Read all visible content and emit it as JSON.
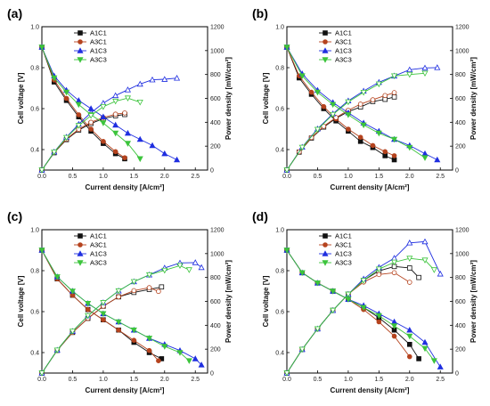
{
  "colors": {
    "A1C1": "#111111",
    "A3C1": "#b5431e",
    "A1C3": "#1f2ee0",
    "A3C3": "#3cc43c"
  },
  "markers": {
    "A1C1": "square",
    "A3C1": "circle",
    "A1C3": "triangle-up",
    "A3C3": "triangle-down"
  },
  "chart_data": [
    {
      "panel_label": "(a)",
      "type": "line",
      "xlabel": "Current density [A/cm²]",
      "ylabel": "Cell voltage [V]",
      "y2label": "Power density [mW/cm²]",
      "xlim": [
        0,
        2.7
      ],
      "ylim": [
        0.3,
        1.0
      ],
      "y2lim": [
        0,
        1200
      ],
      "xticks": [
        "0.0",
        "0.5",
        "1.0",
        "1.5",
        "2.0",
        "2.5"
      ],
      "yticks": [
        "0.4",
        "0.6",
        "0.8",
        "1.0"
      ],
      "y2ticks": [
        "0",
        "200",
        "400",
        "600",
        "800",
        "1000",
        "1200"
      ],
      "legend": [
        "A1C1",
        "A3C1",
        "A1C3",
        "A3C3"
      ],
      "legend_position": "top-left",
      "series": [
        {
          "name": "A1C1",
          "x": [
            0,
            0.2,
            0.4,
            0.6,
            0.8,
            1.0,
            1.2,
            1.35
          ],
          "voltage": [
            0.9,
            0.73,
            0.64,
            0.56,
            0.49,
            0.43,
            0.38,
            0.355
          ],
          "power": [
            0,
            145,
            255,
            335,
            390,
            430,
            455,
            465
          ]
        },
        {
          "name": "A3C1",
          "x": [
            0,
            0.2,
            0.4,
            0.6,
            0.8,
            1.0,
            1.2,
            1.35
          ],
          "voltage": [
            0.9,
            0.74,
            0.65,
            0.57,
            0.5,
            0.44,
            0.39,
            0.36
          ],
          "power": [
            0,
            148,
            260,
            342,
            400,
            440,
            468,
            478
          ]
        },
        {
          "name": "A1C3",
          "x": [
            0,
            0.2,
            0.4,
            0.6,
            0.8,
            1.0,
            1.2,
            1.4,
            1.6,
            1.8,
            2.0,
            2.2
          ],
          "voltage": [
            0.9,
            0.76,
            0.69,
            0.64,
            0.6,
            0.56,
            0.52,
            0.48,
            0.45,
            0.42,
            0.38,
            0.35
          ],
          "power": [
            0,
            152,
            276,
            384,
            480,
            560,
            624,
            672,
            720,
            756,
            760,
            770
          ]
        },
        {
          "name": "A3C3",
          "x": [
            0,
            0.2,
            0.4,
            0.6,
            0.8,
            1.0,
            1.2,
            1.4,
            1.6
          ],
          "voltage": [
            0.9,
            0.75,
            0.68,
            0.62,
            0.57,
            0.53,
            0.48,
            0.43,
            0.355
          ],
          "power": [
            0,
            150,
            272,
            372,
            456,
            530,
            576,
            602,
            568
          ]
        }
      ]
    },
    {
      "panel_label": "(b)",
      "type": "line",
      "xlabel": "Current density [A/cm²]",
      "ylabel": "Cell voltage [V]",
      "y2label": "Power density [mW/cm²]",
      "xlim": [
        0,
        2.7
      ],
      "ylim": [
        0.3,
        1.0
      ],
      "y2lim": [
        0,
        1200
      ],
      "xticks": [
        "0.0",
        "0.5",
        "1.0",
        "1.5",
        "2.0",
        "2.5"
      ],
      "yticks": [
        "0.4",
        "0.6",
        "0.8",
        "1.0"
      ],
      "y2ticks": [
        "0",
        "200",
        "400",
        "600",
        "800",
        "1000",
        "1200"
      ],
      "legend": [
        "A1C1",
        "A3C1",
        "A1C3",
        "A3C3"
      ],
      "legend_position": "top-left",
      "series": [
        {
          "name": "A1C1",
          "x": [
            0,
            0.2,
            0.4,
            0.6,
            0.8,
            1.0,
            1.2,
            1.4,
            1.6,
            1.75
          ],
          "voltage": [
            0.9,
            0.75,
            0.67,
            0.6,
            0.54,
            0.49,
            0.44,
            0.41,
            0.37,
            0.35
          ],
          "power": [
            0,
            150,
            268,
            360,
            432,
            490,
            528,
            574,
            592,
            612
          ]
        },
        {
          "name": "A3C1",
          "x": [
            0,
            0.2,
            0.4,
            0.6,
            0.8,
            1.0,
            1.2,
            1.4,
            1.6,
            1.75
          ],
          "voltage": [
            0.9,
            0.76,
            0.68,
            0.61,
            0.55,
            0.5,
            0.46,
            0.42,
            0.39,
            0.37
          ],
          "power": [
            0,
            152,
            272,
            366,
            440,
            500,
            552,
            588,
            624,
            648
          ]
        },
        {
          "name": "A1C3",
          "x": [
            0,
            0.25,
            0.5,
            0.75,
            1.0,
            1.25,
            1.5,
            1.75,
            2.0,
            2.25,
            2.45
          ],
          "voltage": [
            0.9,
            0.77,
            0.69,
            0.63,
            0.58,
            0.53,
            0.49,
            0.45,
            0.42,
            0.38,
            0.35
          ],
          "power": [
            0,
            192,
            345,
            472,
            580,
            662,
            735,
            788,
            840,
            855,
            858
          ]
        },
        {
          "name": "A3C3",
          "x": [
            0,
            0.25,
            0.5,
            0.75,
            1.0,
            1.25,
            1.5,
            1.75,
            2.0,
            2.25
          ],
          "voltage": [
            0.9,
            0.76,
            0.68,
            0.62,
            0.57,
            0.52,
            0.48,
            0.45,
            0.41,
            0.36
          ],
          "power": [
            0,
            190,
            340,
            465,
            570,
            650,
            720,
            788,
            800,
            810
          ]
        }
      ]
    },
    {
      "panel_label": "(c)",
      "type": "line",
      "xlabel": "Current density [A/cm²]",
      "ylabel": "Cell voltage [V]",
      "y2label": "Power density [mW/cm²]",
      "xlim": [
        0,
        2.7
      ],
      "ylim": [
        0.3,
        1.0
      ],
      "y2lim": [
        0,
        1200
      ],
      "xticks": [
        "0.0",
        "0.5",
        "1.0",
        "1.5",
        "2.0",
        "2.5"
      ],
      "yticks": [
        "0.4",
        "0.6",
        "0.8",
        "1.0"
      ],
      "y2ticks": [
        "0",
        "200",
        "400",
        "600",
        "800",
        "1000",
        "1200"
      ],
      "legend": [
        "A1C1",
        "A3C1",
        "A1C3",
        "A3C3"
      ],
      "legend_position": "top-left",
      "series": [
        {
          "name": "A1C1",
          "x": [
            0,
            0.25,
            0.5,
            0.75,
            1.0,
            1.25,
            1.5,
            1.75,
            1.95
          ],
          "voltage": [
            0.9,
            0.76,
            0.68,
            0.61,
            0.56,
            0.51,
            0.45,
            0.4,
            0.37
          ],
          "power": [
            0,
            190,
            340,
            458,
            560,
            638,
            675,
            700,
            721
          ]
        },
        {
          "name": "A3C1",
          "x": [
            0,
            0.25,
            0.5,
            0.75,
            1.0,
            1.25,
            1.5,
            1.75,
            1.9
          ],
          "voltage": [
            0.9,
            0.76,
            0.68,
            0.61,
            0.56,
            0.51,
            0.46,
            0.41,
            0.36
          ],
          "power": [
            0,
            190,
            340,
            458,
            560,
            638,
            690,
            715,
            684
          ]
        },
        {
          "name": "A1C3",
          "x": [
            0,
            0.25,
            0.5,
            0.75,
            1.0,
            1.25,
            1.5,
            1.75,
            2.0,
            2.25,
            2.5,
            2.6
          ],
          "voltage": [
            0.9,
            0.77,
            0.7,
            0.64,
            0.59,
            0.55,
            0.51,
            0.47,
            0.44,
            0.41,
            0.37,
            0.34
          ],
          "power": [
            0,
            192,
            350,
            480,
            590,
            688,
            765,
            822,
            880,
            922,
            925,
            884
          ]
        },
        {
          "name": "A3C3",
          "x": [
            0,
            0.25,
            0.5,
            0.75,
            1.0,
            1.25,
            1.5,
            1.75,
            2.0,
            2.25,
            2.4
          ],
          "voltage": [
            0.9,
            0.77,
            0.7,
            0.64,
            0.59,
            0.55,
            0.51,
            0.47,
            0.43,
            0.4,
            0.36
          ],
          "power": [
            0,
            192,
            350,
            480,
            590,
            688,
            765,
            822,
            860,
            900,
            864
          ]
        }
      ]
    },
    {
      "panel_label": "(d)",
      "type": "line",
      "xlabel": "Current density [A/cm²]",
      "ylabel": "Cell voltage [V]",
      "y2label": "Power density [mW/cm²]",
      "xlim": [
        0,
        2.7
      ],
      "ylim": [
        0.3,
        1.0
      ],
      "y2lim": [
        0,
        1200
      ],
      "xticks": [
        "0.0",
        "0.5",
        "1.0",
        "1.5",
        "2.0",
        "2.5"
      ],
      "yticks": [
        "0.4",
        "0.6",
        "0.8",
        "1.0"
      ],
      "y2ticks": [
        "0",
        "200",
        "400",
        "600",
        "800",
        "1000",
        "1200"
      ],
      "legend": [
        "A1C1",
        "A3C1",
        "A1C3",
        "A3C3"
      ],
      "legend_position": "top-left",
      "series": [
        {
          "name": "A1C1",
          "x": [
            0,
            0.25,
            0.5,
            0.75,
            1.0,
            1.25,
            1.5,
            1.75,
            2.0,
            2.15
          ],
          "voltage": [
            0.9,
            0.79,
            0.74,
            0.7,
            0.66,
            0.62,
            0.57,
            0.51,
            0.44,
            0.37
          ],
          "power": [
            0,
            198,
            370,
            525,
            660,
            775,
            855,
            892,
            880,
            800
          ]
        },
        {
          "name": "A3C1",
          "x": [
            0,
            0.25,
            0.5,
            0.75,
            1.0,
            1.25,
            1.5,
            1.75,
            2.0
          ],
          "voltage": [
            0.9,
            0.79,
            0.74,
            0.7,
            0.66,
            0.61,
            0.55,
            0.48,
            0.38
          ],
          "power": [
            0,
            198,
            370,
            525,
            660,
            762,
            825,
            840,
            760
          ]
        },
        {
          "name": "A1C3",
          "x": [
            0,
            0.25,
            0.5,
            0.75,
            1.0,
            1.25,
            1.5,
            1.75,
            2.0,
            2.25,
            2.5
          ],
          "voltage": [
            0.9,
            0.79,
            0.74,
            0.7,
            0.66,
            0.63,
            0.59,
            0.55,
            0.51,
            0.45,
            0.33
          ],
          "power": [
            0,
            198,
            370,
            525,
            660,
            788,
            885,
            962,
            1090,
            1100,
            830
          ]
        },
        {
          "name": "A3C3",
          "x": [
            0,
            0.25,
            0.5,
            0.75,
            1.0,
            1.25,
            1.5,
            1.75,
            2.0,
            2.25,
            2.4
          ],
          "voltage": [
            0.9,
            0.79,
            0.74,
            0.7,
            0.66,
            0.62,
            0.58,
            0.53,
            0.48,
            0.42,
            0.36
          ],
          "power": [
            0,
            198,
            370,
            525,
            660,
            775,
            870,
            928,
            960,
            945,
            864
          ]
        }
      ]
    }
  ]
}
